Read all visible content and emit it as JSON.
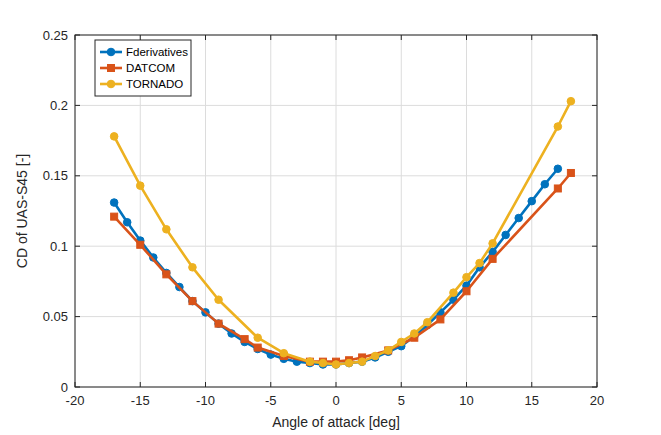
{
  "chart_data": {
    "type": "line",
    "x_label": "Angle of attack [deg]",
    "y_label": "CD of UAS-S45 [-]",
    "xlim": [
      -20,
      20
    ],
    "xticks": [
      -20,
      -15,
      -10,
      -5,
      0,
      5,
      10,
      15,
      20
    ],
    "ylim": [
      0,
      0.25
    ],
    "yticks": [
      0,
      0.05,
      0.1,
      0.15,
      0.2,
      0.25
    ],
    "grid": true,
    "legend": "northwest",
    "series": [
      {
        "name": "Fderivatives",
        "color": "#0072bd",
        "marker": "circle",
        "line_style": "solid",
        "x": [
          -17,
          -16,
          -15,
          -14,
          -13,
          -12,
          -11,
          -10,
          -9,
          -8,
          -7,
          -6,
          -5,
          -4,
          -3,
          -2,
          -1,
          0,
          1,
          2,
          3,
          4,
          5,
          6,
          7,
          8,
          9,
          10,
          11,
          12,
          13,
          14,
          15,
          16,
          17
        ],
        "values": [
          0.131,
          0.117,
          0.104,
          0.092,
          0.081,
          0.071,
          0.061,
          0.053,
          0.045,
          0.038,
          0.032,
          0.027,
          0.023,
          0.02,
          0.018,
          0.017,
          0.016,
          0.016,
          0.017,
          0.018,
          0.021,
          0.025,
          0.029,
          0.036,
          0.044,
          0.053,
          0.062,
          0.072,
          0.085,
          0.096,
          0.108,
          0.12,
          0.132,
          0.144,
          0.155
        ]
      },
      {
        "name": "DATCOM",
        "color": "#d95319",
        "marker": "square",
        "line_style": "solid",
        "x": [
          -17,
          -15,
          -13,
          -11,
          -9,
          -7,
          -6,
          -4,
          -2,
          -1,
          0,
          1,
          2,
          4,
          6,
          8,
          10,
          12,
          17,
          18
        ],
        "values": [
          0.121,
          0.101,
          0.08,
          0.061,
          0.045,
          0.034,
          0.028,
          0.022,
          0.018,
          0.018,
          0.018,
          0.019,
          0.021,
          0.026,
          0.035,
          0.048,
          0.068,
          0.091,
          0.141,
          0.152
        ]
      },
      {
        "name": "TORNADO",
        "color": "#edb120",
        "marker": "circle",
        "line_style": "solid",
        "x": [
          -17,
          -15,
          -13,
          -11,
          -9,
          -6,
          -4,
          -2,
          -1,
          0,
          1,
          2,
          3,
          4,
          5,
          6,
          7,
          9,
          10,
          11,
          12,
          17,
          18
        ],
        "values": [
          0.178,
          0.143,
          0.112,
          0.085,
          0.062,
          0.035,
          0.024,
          0.018,
          0.017,
          0.016,
          0.017,
          0.018,
          0.022,
          0.026,
          0.032,
          0.038,
          0.046,
          0.067,
          0.078,
          0.088,
          0.102,
          0.185,
          0.203
        ]
      }
    ]
  }
}
